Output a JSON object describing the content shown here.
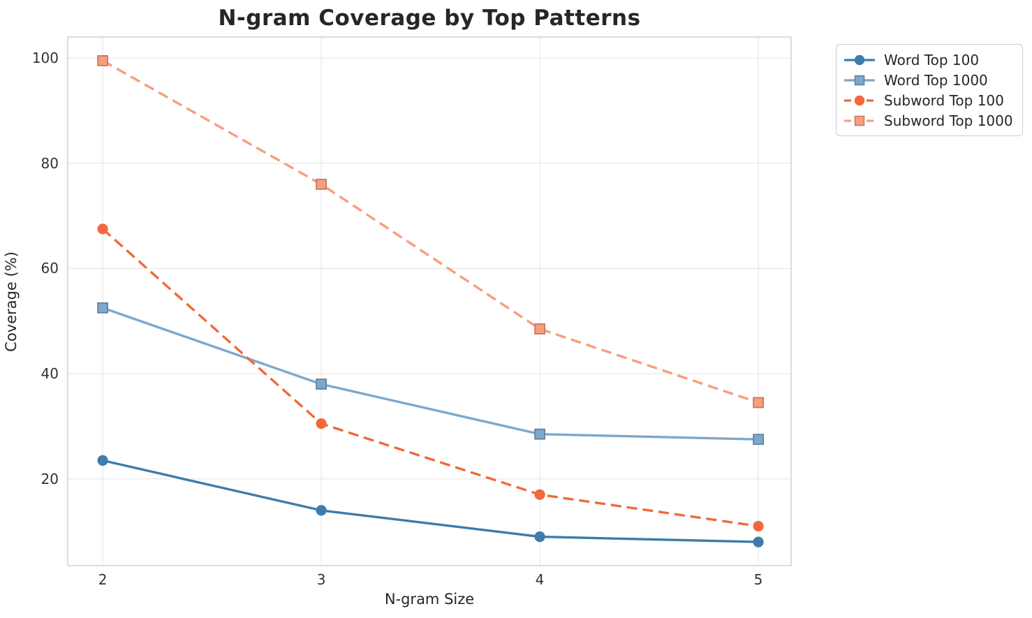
{
  "figure": {
    "title": "N-gram Coverage by Top Patterns",
    "xlabel": "N-gram Size",
    "ylabel": "Coverage (%)"
  },
  "colors": {
    "background": "#ffffff",
    "grid": "#e9e9e9",
    "spine": "#cccccc",
    "title_text": "#262626",
    "tick_text": "#333333",
    "legend_border": "#cccccc"
  },
  "chart_data": {
    "type": "line",
    "title": "N-gram Coverage by Top Patterns",
    "xlabel": "N-gram Size",
    "ylabel": "Coverage (%)",
    "x": [
      2,
      3,
      4,
      5
    ],
    "xticks": [
      "2",
      "3",
      "4",
      "5"
    ],
    "yticks": [
      20,
      40,
      60,
      80,
      100
    ],
    "xlim": [
      1.84,
      5.15
    ],
    "ylim": [
      3.5,
      104
    ],
    "grid": true,
    "legend_position": "outside-top-right",
    "series": [
      {
        "name": "Word Top 100",
        "values": [
          23.5,
          14.0,
          9.0,
          8.0
        ],
        "color": "#3d7cab",
        "marker": "circle",
        "line_style": "solid"
      },
      {
        "name": "Word Top 1000",
        "values": [
          52.5,
          38.0,
          28.5,
          27.5
        ],
        "color": "#7da8cb",
        "marker": "square",
        "line_style": "solid"
      },
      {
        "name": "Subword Top 100",
        "values": [
          67.5,
          30.5,
          17.0,
          11.0
        ],
        "color": "#f2683c",
        "marker": "circle",
        "line_style": "dashed"
      },
      {
        "name": "Subword Top 1000",
        "values": [
          99.5,
          76.0,
          48.5,
          34.5
        ],
        "color": "#f89e7c",
        "marker": "square",
        "line_style": "dashed"
      }
    ]
  }
}
